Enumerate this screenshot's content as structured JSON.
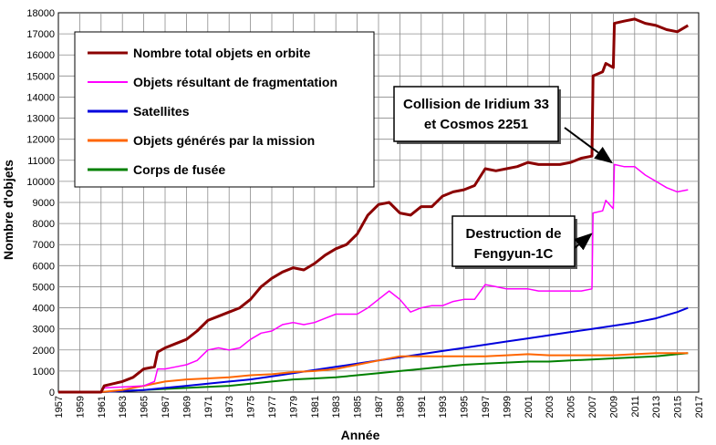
{
  "chart_data": {
    "type": "line",
    "xlabel": "Année",
    "ylabel": "Nombre d'objets",
    "xlim": [
      1957,
      2017
    ],
    "ylim": [
      0,
      18000
    ],
    "x_tick_step": 2,
    "y_tick_step": 1000,
    "grid": true,
    "legend_position": "top-left",
    "series": [
      {
        "name": "Nombre total objets en orbite",
        "color": "#8B0000",
        "width": 3,
        "x": [
          1957,
          1961,
          1961.3,
          1963,
          1964,
          1965,
          1966,
          1966.3,
          1967,
          1968,
          1969,
          1970,
          1971,
          1972,
          1973,
          1974,
          1975,
          1976,
          1977,
          1978,
          1979,
          1980,
          1981,
          1982,
          1983,
          1984,
          1985,
          1986,
          1987,
          1988,
          1989,
          1990,
          1991,
          1992,
          1993,
          1994,
          1995,
          1996,
          1997,
          1998,
          1999,
          2000,
          2001,
          2002,
          2003,
          2004,
          2005,
          2006,
          2007,
          2007.1,
          2008,
          2008.3,
          2009,
          2009.1,
          2010,
          2011,
          2012,
          2013,
          2014,
          2015,
          2016
        ],
        "y": [
          0,
          0,
          300,
          500,
          700,
          1100,
          1200,
          1900,
          2100,
          2300,
          2500,
          2900,
          3400,
          3600,
          3800,
          4000,
          4400,
          5000,
          5400,
          5700,
          5900,
          5800,
          6100,
          6500,
          6800,
          7000,
          7500,
          8400,
          8900,
          9000,
          8500,
          8400,
          8800,
          8800,
          9300,
          9500,
          9600,
          9800,
          10600,
          10500,
          10600,
          10700,
          10900,
          10800,
          10800,
          10800,
          10900,
          11100,
          11200,
          15000,
          15200,
          15600,
          15400,
          17500,
          17600,
          17700,
          17500,
          17400,
          17200,
          17100,
          17400
        ]
      },
      {
        "name": "Objets résultant de fragmentation",
        "color": "#FF00FF",
        "width": 1.5,
        "x": [
          1957,
          1961,
          1961.3,
          1965,
          1966,
          1966.3,
          1967,
          1968,
          1969,
          1970,
          1971,
          1972,
          1973,
          1974,
          1975,
          1976,
          1977,
          1978,
          1979,
          1980,
          1981,
          1982,
          1983,
          1984,
          1985,
          1986,
          1987,
          1988,
          1989,
          1990,
          1991,
          1992,
          1993,
          1994,
          1995,
          1996,
          1997,
          1998,
          1999,
          2000,
          2001,
          2002,
          2003,
          2004,
          2005,
          2006,
          2007,
          2007.1,
          2008,
          2008.3,
          2009,
          2009.1,
          2010,
          2011,
          2012,
          2013,
          2014,
          2015,
          2016
        ],
        "y": [
          0,
          0,
          200,
          300,
          500,
          1100,
          1100,
          1200,
          1300,
          1500,
          2000,
          2100,
          2000,
          2100,
          2500,
          2800,
          2900,
          3200,
          3300,
          3200,
          3300,
          3500,
          3700,
          3700,
          3700,
          4000,
          4400,
          4800,
          4400,
          3800,
          4000,
          4100,
          4100,
          4300,
          4400,
          4400,
          5100,
          5000,
          4900,
          4900,
          4900,
          4800,
          4800,
          4800,
          4800,
          4800,
          4900,
          8500,
          8600,
          9100,
          8700,
          10800,
          10700,
          10700,
          10300,
          10000,
          9700,
          9500,
          9600
        ]
      },
      {
        "name": "Satellites",
        "color": "#0000DD",
        "width": 2,
        "x": [
          1957,
          1961,
          1963,
          1965,
          1967,
          1969,
          1971,
          1973,
          1975,
          1977,
          1979,
          1981,
          1983,
          1985,
          1987,
          1989,
          1991,
          1993,
          1995,
          1997,
          1999,
          2001,
          2003,
          2005,
          2007,
          2009,
          2011,
          2013,
          2015,
          2016
        ],
        "y": [
          0,
          0,
          50,
          100,
          200,
          300,
          400,
          500,
          600,
          750,
          900,
          1050,
          1200,
          1350,
          1500,
          1650,
          1800,
          1950,
          2100,
          2250,
          2400,
          2550,
          2700,
          2850,
          3000,
          3150,
          3300,
          3500,
          3800,
          4000
        ]
      },
      {
        "name": "Objets générés par la mission",
        "color": "#FF6600",
        "width": 2,
        "x": [
          1957,
          1961,
          1963,
          1965,
          1967,
          1969,
          1971,
          1973,
          1975,
          1977,
          1979,
          1981,
          1983,
          1985,
          1987,
          1989,
          1991,
          1993,
          1995,
          1997,
          1999,
          2001,
          2003,
          2005,
          2007,
          2009,
          2011,
          2013,
          2015,
          2016
        ],
        "y": [
          0,
          0,
          100,
          300,
          500,
          600,
          650,
          700,
          800,
          850,
          950,
          1000,
          1100,
          1300,
          1500,
          1700,
          1700,
          1700,
          1700,
          1700,
          1750,
          1800,
          1750,
          1750,
          1750,
          1750,
          1800,
          1850,
          1850,
          1850
        ]
      },
      {
        "name": "Corps de fusée",
        "color": "#008000",
        "width": 2,
        "x": [
          1957,
          1961,
          1963,
          1965,
          1967,
          1969,
          1971,
          1973,
          1975,
          1977,
          1979,
          1981,
          1983,
          1985,
          1987,
          1989,
          1991,
          1993,
          1995,
          1997,
          1999,
          2001,
          2003,
          2005,
          2007,
          2009,
          2011,
          2013,
          2015,
          2016
        ],
        "y": [
          0,
          0,
          50,
          100,
          150,
          200,
          250,
          300,
          400,
          500,
          600,
          650,
          700,
          800,
          900,
          1000,
          1100,
          1200,
          1300,
          1350,
          1400,
          1450,
          1450,
          1500,
          1550,
          1600,
          1650,
          1700,
          1800,
          1850
        ]
      }
    ],
    "annotations": [
      {
        "lines": [
          "Collision de Iridium 33",
          "et Cosmos 2251"
        ],
        "target_x": 2009,
        "target_y": 10900
      },
      {
        "lines": [
          "Destruction de",
          "Fengyun-1C"
        ],
        "target_x": 2007.1,
        "target_y": 7500
      }
    ]
  }
}
